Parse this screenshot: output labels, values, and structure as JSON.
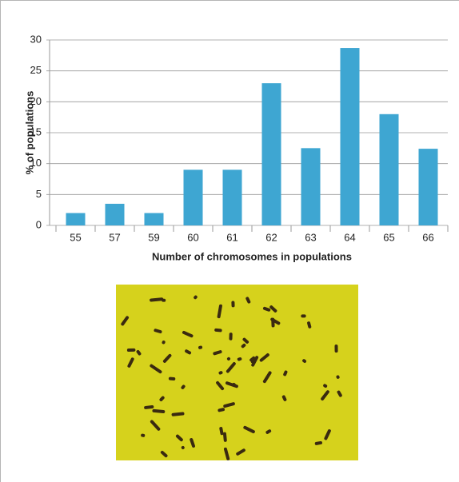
{
  "chart_data": {
    "type": "bar",
    "x_label": "Number of chromosomes in populations",
    "y_label": "% of populations",
    "categories": [
      "55",
      "57",
      "59",
      "60",
      "61",
      "62",
      "63",
      "64",
      "65",
      "66"
    ],
    "values": [
      2,
      3.5,
      2,
      9,
      9,
      23,
      12.5,
      28.7,
      18,
      12.4
    ],
    "color": "#3ea6d2",
    "ylim": [
      0,
      30
    ],
    "yticks": [
      0,
      5,
      10,
      15,
      20,
      25,
      30
    ],
    "grid": true
  }
}
